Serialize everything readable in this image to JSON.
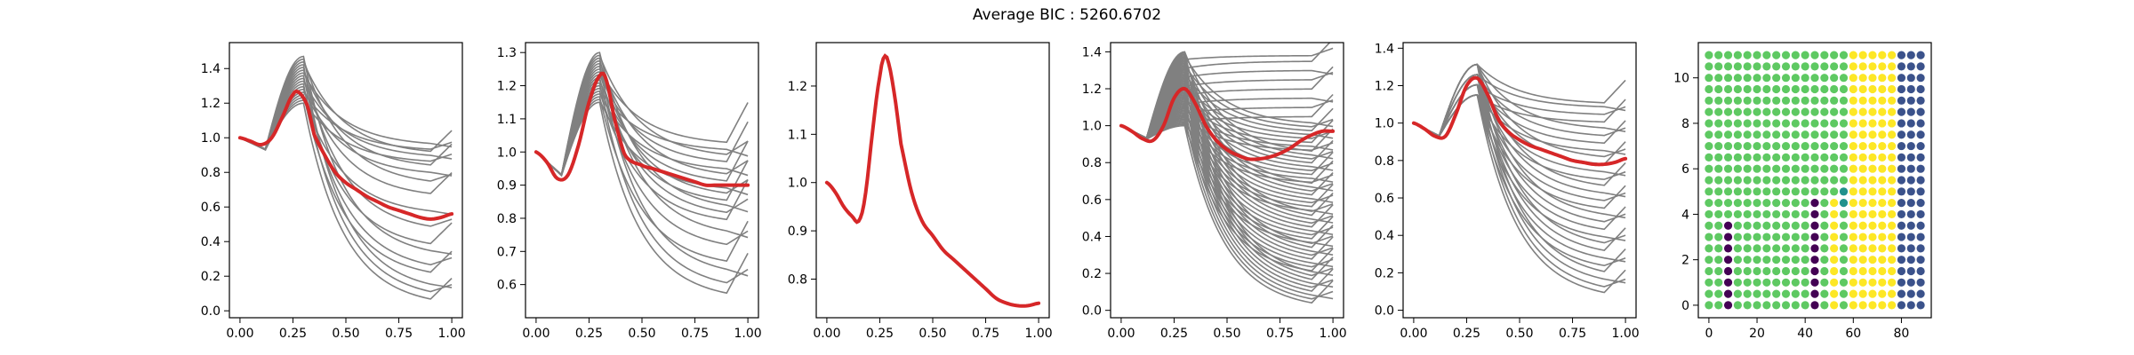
{
  "figure": {
    "title": "Average BIC : 5260.6702"
  },
  "colors": {
    "member_curve": "#808080",
    "mean_curve": "#d62728",
    "cluster_palette": [
      "#440154",
      "#31688e",
      "#3b528b",
      "#21918c",
      "#5ec962",
      "#fde725"
    ]
  },
  "chart_data": [
    {
      "type": "line",
      "panel": 1,
      "xlim": [
        -0.05,
        1.05
      ],
      "ylim": [
        -0.04,
        1.55
      ],
      "xticks": [
        0.0,
        0.25,
        0.5,
        0.75,
        1.0
      ],
      "xtick_labels": [
        "0.00",
        "0.25",
        "0.50",
        "0.75",
        "1.00"
      ],
      "yticks": [
        0.0,
        0.2,
        0.4,
        0.6,
        0.8,
        1.0,
        1.2,
        1.4
      ],
      "ytick_labels": [
        "0.0",
        "0.2",
        "0.4",
        "0.6",
        "0.8",
        "1.0",
        "1.2",
        "1.4"
      ],
      "members": {
        "color": "#808080",
        "peak_range": [
          1.2,
          1.47
        ],
        "tail_levels": [
          0.02,
          0.06,
          0.1,
          0.18,
          0.22,
          0.3,
          0.35,
          0.45,
          0.55,
          0.65,
          0.72,
          0.78,
          0.82,
          0.85,
          0.88,
          0.9,
          0.92,
          0.95
        ]
      },
      "mean": {
        "color": "#d62728",
        "x": [
          0.0,
          0.05,
          0.1,
          0.15,
          0.2,
          0.25,
          0.28,
          0.32,
          0.35,
          0.4,
          0.45,
          0.5,
          0.55,
          0.6,
          0.65,
          0.7,
          0.75,
          0.8,
          0.85,
          0.9,
          0.95,
          1.0
        ],
        "y": [
          1.0,
          0.98,
          0.96,
          1.0,
          1.12,
          1.25,
          1.26,
          1.18,
          1.02,
          0.9,
          0.8,
          0.74,
          0.7,
          0.66,
          0.63,
          0.6,
          0.58,
          0.56,
          0.54,
          0.53,
          0.54,
          0.56
        ]
      }
    },
    {
      "type": "line",
      "panel": 2,
      "xlim": [
        -0.05,
        1.05
      ],
      "ylim": [
        0.5,
        1.33
      ],
      "xticks": [
        0.0,
        0.25,
        0.5,
        0.75,
        1.0
      ],
      "xtick_labels": [
        "0.00",
        "0.25",
        "0.50",
        "0.75",
        "1.00"
      ],
      "yticks": [
        0.6,
        0.7,
        0.8,
        0.9,
        1.0,
        1.1,
        1.2,
        1.3
      ],
      "ytick_labels": [
        "0.6",
        "0.7",
        "0.8",
        "0.9",
        "1.0",
        "1.1",
        "1.2",
        "1.3"
      ],
      "members": {
        "color": "#808080",
        "peak_range": [
          1.15,
          1.3
        ],
        "tail_levels": [
          0.55,
          0.58,
          0.62,
          0.65,
          0.7,
          0.74,
          0.78,
          0.8,
          0.82,
          0.84,
          0.86,
          0.88,
          0.9,
          0.92,
          0.94,
          0.96,
          0.98,
          1.0,
          1.02
        ]
      },
      "mean": {
        "color": "#d62728",
        "x": [
          0.0,
          0.05,
          0.1,
          0.15,
          0.2,
          0.25,
          0.3,
          0.33,
          0.37,
          0.42,
          0.5,
          0.55,
          0.6,
          0.65,
          0.7,
          0.75,
          0.8,
          0.85,
          0.9,
          0.95,
          1.0
        ],
        "y": [
          1.0,
          0.97,
          0.92,
          0.93,
          1.02,
          1.15,
          1.23,
          1.22,
          1.1,
          0.99,
          0.96,
          0.95,
          0.94,
          0.93,
          0.92,
          0.91,
          0.9,
          0.9,
          0.9,
          0.9,
          0.9
        ]
      }
    },
    {
      "type": "line",
      "panel": 3,
      "xlim": [
        -0.05,
        1.05
      ],
      "ylim": [
        0.72,
        1.29
      ],
      "xticks": [
        0.0,
        0.25,
        0.5,
        0.75,
        1.0
      ],
      "xtick_labels": [
        "0.00",
        "0.25",
        "0.50",
        "0.75",
        "1.00"
      ],
      "yticks": [
        0.8,
        0.9,
        1.0,
        1.1,
        1.2
      ],
      "ytick_labels": [
        "0.8",
        "0.9",
        "1.0",
        "1.1",
        "1.2"
      ],
      "members": {
        "color": "#808080",
        "peak_range": [
          1.26,
          1.26
        ],
        "tail_levels": []
      },
      "mean": {
        "color": "#d62728",
        "x": [
          0.0,
          0.04,
          0.08,
          0.12,
          0.15,
          0.18,
          0.22,
          0.25,
          0.27,
          0.29,
          0.32,
          0.35,
          0.4,
          0.45,
          0.5,
          0.55,
          0.6,
          0.65,
          0.7,
          0.75,
          0.8,
          0.85,
          0.9,
          0.95,
          1.0
        ],
        "y": [
          1.0,
          0.98,
          0.95,
          0.93,
          0.92,
          0.97,
          1.12,
          1.22,
          1.26,
          1.25,
          1.18,
          1.08,
          0.98,
          0.92,
          0.89,
          0.86,
          0.84,
          0.82,
          0.8,
          0.78,
          0.76,
          0.75,
          0.745,
          0.745,
          0.75
        ]
      }
    },
    {
      "type": "line",
      "panel": 4,
      "xlim": [
        -0.05,
        1.05
      ],
      "ylim": [
        -0.04,
        1.45
      ],
      "xticks": [
        0.0,
        0.25,
        0.5,
        0.75,
        1.0
      ],
      "xtick_labels": [
        "0.00",
        "0.25",
        "0.50",
        "0.75",
        "1.00"
      ],
      "yticks": [
        0.0,
        0.2,
        0.4,
        0.6,
        0.8,
        1.0,
        1.2,
        1.4
      ],
      "ytick_labels": [
        "0.0",
        "0.2",
        "0.4",
        "0.6",
        "0.8",
        "1.0",
        "1.2",
        "1.4"
      ],
      "members": {
        "color": "#808080",
        "peak_range": [
          1.0,
          1.4
        ],
        "tail_levels": [
          0.0,
          0.02,
          0.04,
          0.06,
          0.08,
          0.1,
          0.12,
          0.14,
          0.16,
          0.18,
          0.2,
          0.22,
          0.24,
          0.26,
          0.28,
          0.3,
          0.32,
          0.34,
          0.36,
          0.38,
          0.4,
          0.42,
          0.44,
          0.46,
          0.48,
          0.5,
          0.52,
          0.54,
          0.56,
          0.58,
          0.6,
          0.62,
          0.64,
          0.66,
          0.68,
          0.7,
          0.72,
          0.74,
          0.76,
          0.78,
          0.8,
          0.82,
          0.84,
          0.86,
          0.88,
          0.9,
          0.92,
          0.94,
          0.96,
          0.98,
          1.0,
          1.05,
          1.1,
          1.15,
          1.2,
          1.25,
          1.3,
          1.35,
          1.38
        ]
      },
      "mean": {
        "color": "#d62728",
        "x": [
          0.0,
          0.05,
          0.1,
          0.15,
          0.2,
          0.25,
          0.3,
          0.35,
          0.4,
          0.45,
          0.5,
          0.55,
          0.6,
          0.65,
          0.7,
          0.75,
          0.8,
          0.85,
          0.9,
          0.95,
          1.0
        ],
        "y": [
          1.0,
          0.97,
          0.93,
          0.92,
          1.0,
          1.15,
          1.2,
          1.12,
          1.0,
          0.92,
          0.87,
          0.84,
          0.82,
          0.82,
          0.83,
          0.85,
          0.88,
          0.92,
          0.95,
          0.97,
          0.97
        ]
      }
    },
    {
      "type": "line",
      "panel": 5,
      "xlim": [
        -0.05,
        1.05
      ],
      "ylim": [
        -0.04,
        1.43
      ],
      "xticks": [
        0.0,
        0.25,
        0.5,
        0.75,
        1.0
      ],
      "xtick_labels": [
        "0.00",
        "0.25",
        "0.50",
        "0.75",
        "1.00"
      ],
      "yticks": [
        0.0,
        0.2,
        0.4,
        0.6,
        0.8,
        1.0,
        1.2,
        1.4
      ],
      "ytick_labels": [
        "0.0",
        "0.2",
        "0.4",
        "0.6",
        "0.8",
        "1.0",
        "1.2",
        "1.4"
      ],
      "members": {
        "color": "#808080",
        "peak_range": [
          1.15,
          1.36
        ],
        "tail_levels": [
          0.05,
          0.08,
          0.12,
          0.16,
          0.2,
          0.24,
          0.28,
          0.32,
          0.36,
          0.4,
          0.44,
          0.48,
          0.52,
          0.56,
          0.6,
          0.64,
          0.68,
          0.72,
          0.76,
          0.8,
          0.84,
          0.88,
          0.92,
          0.96,
          1.0,
          1.04,
          1.08,
          1.1
        ]
      },
      "mean": {
        "color": "#d62728",
        "x": [
          0.0,
          0.05,
          0.1,
          0.15,
          0.2,
          0.25,
          0.3,
          0.35,
          0.4,
          0.45,
          0.5,
          0.55,
          0.6,
          0.65,
          0.7,
          0.75,
          0.8,
          0.85,
          0.9,
          0.95,
          1.0
        ],
        "y": [
          1.0,
          0.97,
          0.93,
          0.93,
          1.05,
          1.2,
          1.24,
          1.15,
          1.02,
          0.95,
          0.91,
          0.88,
          0.86,
          0.84,
          0.82,
          0.8,
          0.79,
          0.78,
          0.78,
          0.79,
          0.81
        ]
      }
    },
    {
      "type": "scatter",
      "panel": 6,
      "xlim": [
        -4.4,
        92.4
      ],
      "ylim": [
        -0.55,
        11.55
      ],
      "xticks": [
        0,
        20,
        40,
        60,
        80
      ],
      "xtick_labels": [
        "0",
        "20",
        "40",
        "60",
        "80"
      ],
      "yticks": [
        0,
        2,
        4,
        6,
        8,
        10
      ],
      "ytick_labels": [
        "0",
        "2",
        "4",
        "6",
        "8",
        "10"
      ],
      "grid": {
        "x_min": 0,
        "x_max": 88,
        "x_step": 4,
        "y_min": 0,
        "y_max": 11,
        "y_step": 0.5
      },
      "cluster_rules": [
        {
          "x_from": 0,
          "x_to": 56,
          "y_from": 0,
          "y_to": 11,
          "cluster": 4
        },
        {
          "x_from": 60,
          "x_to": 76,
          "y_from": 0,
          "y_to": 11,
          "cluster": 5
        },
        {
          "x_from": 80,
          "x_to": 88,
          "y_from": 0,
          "y_to": 11,
          "cluster": 2
        },
        {
          "x_from": 8,
          "x_to": 8,
          "y_from": 0,
          "y_to": 3.5,
          "cluster": 0
        },
        {
          "x_from": 44,
          "x_to": 44,
          "y_from": 0,
          "y_to": 4.5,
          "cluster": 0
        },
        {
          "x_from": 52,
          "x_to": 52,
          "y_from": 0,
          "y_to": 4.5,
          "cluster": 5
        },
        {
          "x_from": 56,
          "x_to": 56,
          "y_from": 4.5,
          "y_to": 5.0,
          "cluster": 3
        }
      ]
    }
  ]
}
